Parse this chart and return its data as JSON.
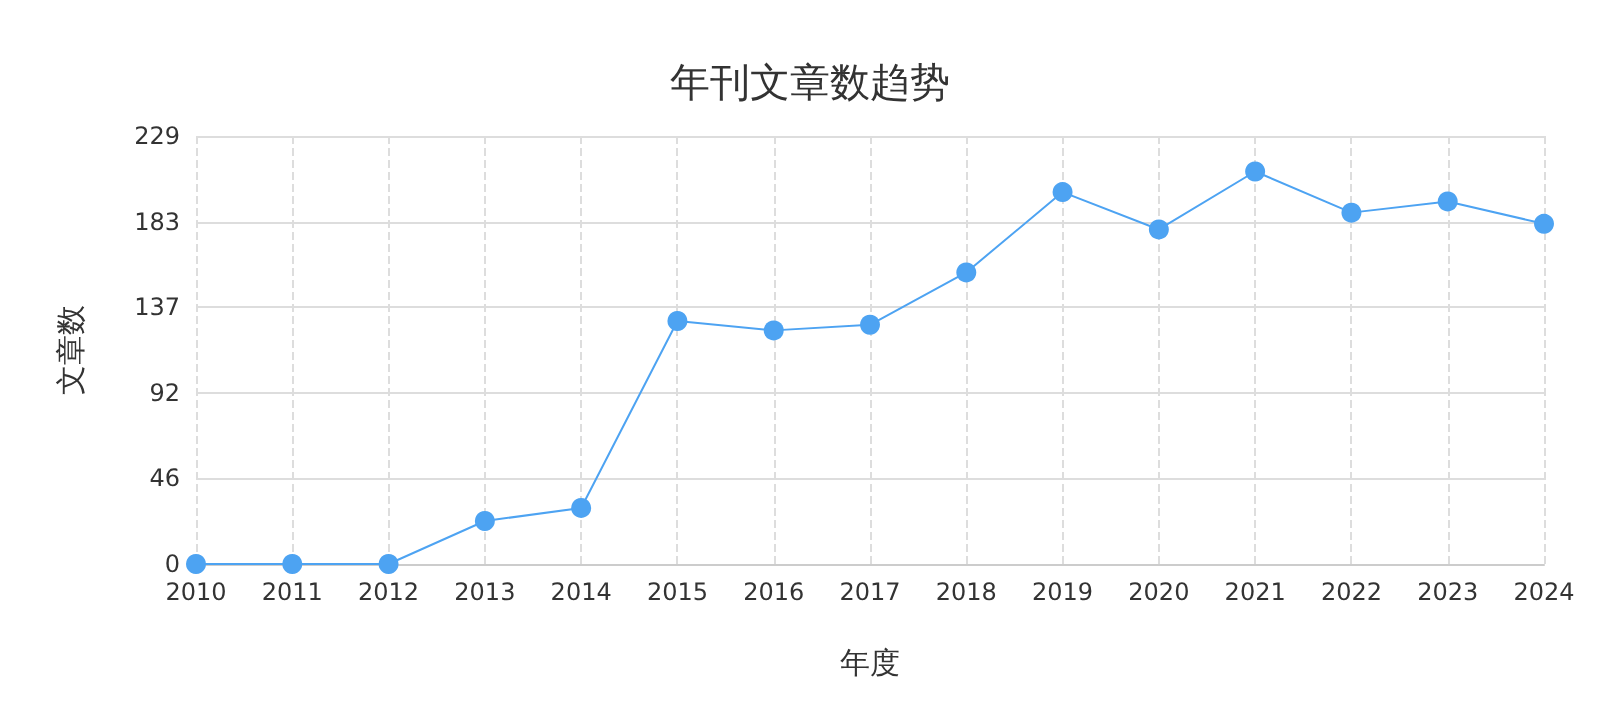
{
  "chart_data": {
    "type": "line",
    "title": "年刊文章数趋势",
    "xlabel": "年度",
    "ylabel": "文章数",
    "categories": [
      "2010",
      "2011",
      "2012",
      "2013",
      "2014",
      "2015",
      "2016",
      "2017",
      "2018",
      "2019",
      "2020",
      "2021",
      "2022",
      "2023",
      "2024"
    ],
    "series": [
      {
        "color": "#4da3f2",
        "values": [
          0,
          0,
          0,
          23,
          30,
          130,
          125,
          128,
          156,
          199,
          179,
          210,
          188,
          194,
          182
        ]
      }
    ],
    "ylim": [
      0,
      229
    ],
    "yticks": [
      0,
      {
        "value": 45.8,
        "label": "46"
      },
      {
        "value": 91.6,
        "label": "92"
      },
      {
        "value": 137.4,
        "label": "137"
      },
      {
        "value": 183.2,
        "label": "183"
      },
      229
    ],
    "grid": true,
    "marker": "circle",
    "line_style": "solid"
  }
}
